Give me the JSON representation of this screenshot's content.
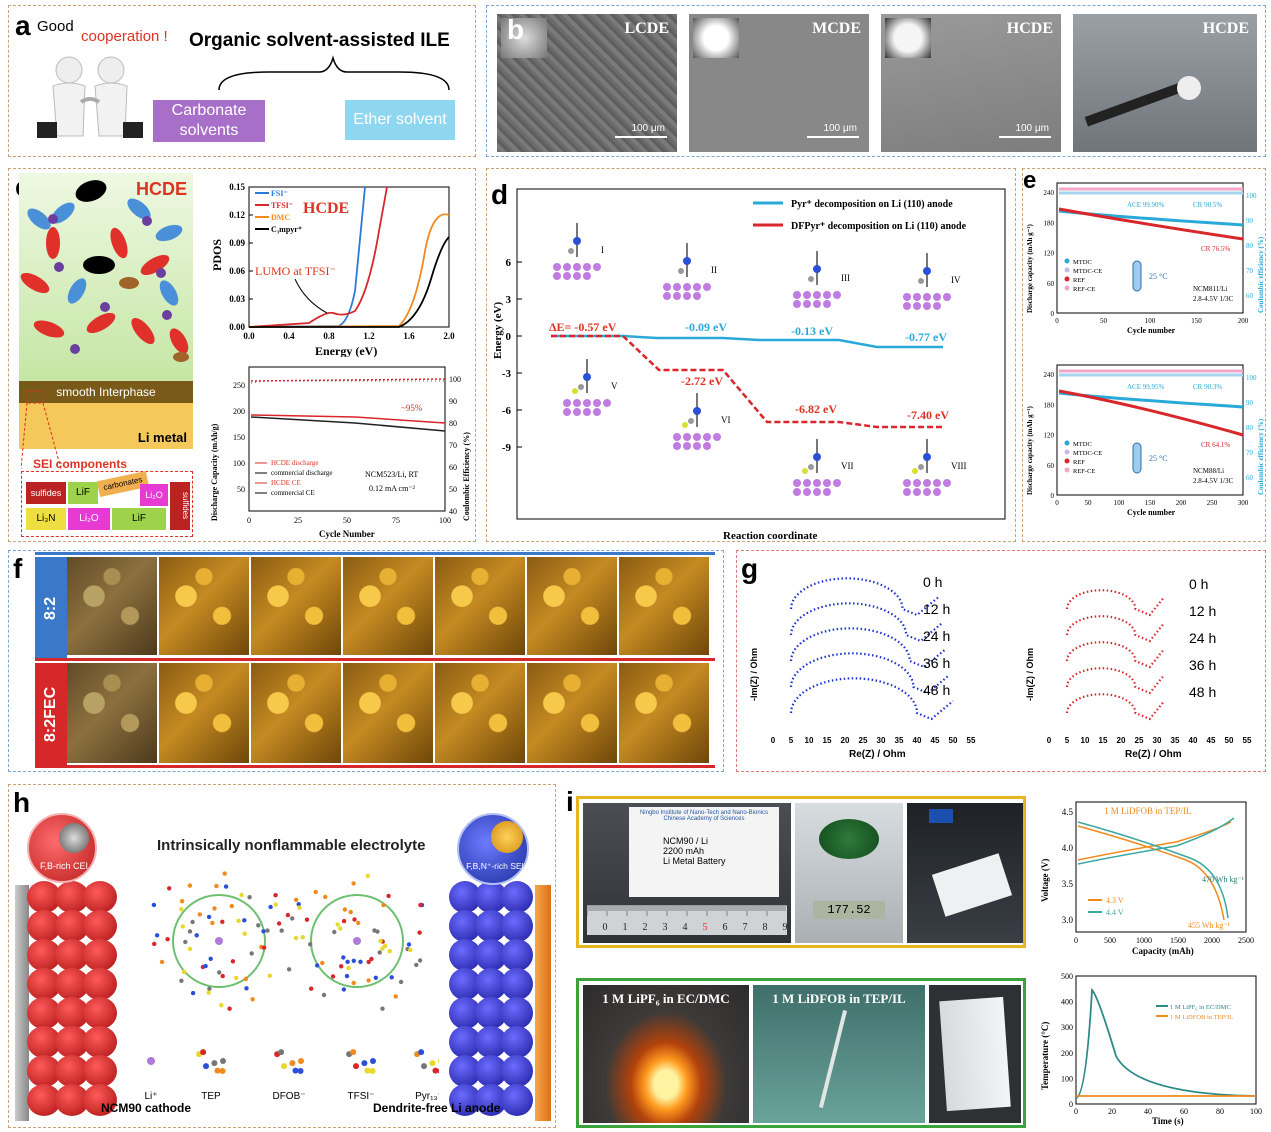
{
  "a": {
    "label": "a",
    "good": "Good",
    "cooperation": "cooperation !",
    "title": "Organic solvent-assisted ILE",
    "left": "Carbonate\nsolvents",
    "right": "Ether solvent"
  },
  "b": {
    "label": "b",
    "tiles": [
      "LCDE",
      "MCDE",
      "HCDE",
      "HCDE"
    ],
    "scale": "100 μm"
  },
  "c": {
    "label": "c",
    "tag": "HCDE",
    "interphase": "smooth Interphase",
    "limetal": "Li metal",
    "sei": "SEI components",
    "blocks": [
      "sulfides",
      "LiF",
      "carbonates",
      "Li₂O",
      "sulfides",
      "Li₃N",
      "Li₂O",
      "LiF"
    ],
    "pdos": {
      "title": "HCDE",
      "legend": [
        "FSI⁻",
        "TFSI⁻",
        "DMC",
        "C₃mpyr⁺"
      ],
      "ylabel": "PDOS",
      "xlabel": "Energy (eV)",
      "yticks": [
        "0.00",
        "0.03",
        "0.06",
        "0.09",
        "0.12",
        "0.15"
      ],
      "xticks": [
        "0.0",
        "0.4",
        "0.8",
        "1.2",
        "1.6",
        "2.0"
      ],
      "annotation": "LUMO at TFSI⁻"
    },
    "cycling": {
      "ylabel": "Discharge Capacity (mAh/g)",
      "y2label": "Coulombic Efficiency (%)",
      "xlabel": "Cycle Number",
      "xticks": [
        "0",
        "25",
        "50",
        "75",
        "100"
      ],
      "yticks": [
        "50",
        "100",
        "150",
        "200",
        "250"
      ],
      "y2ticks": [
        "40",
        "50",
        "60",
        "70",
        "80",
        "90",
        "100"
      ],
      "legend": [
        "HCDE discharge",
        "commercial discharge",
        "HCDE CE",
        "commercial CE"
      ],
      "info": [
        "NCM523/Li, RT",
        "0.12 mA cm⁻²"
      ],
      "retention": "~95%"
    }
  },
  "d": {
    "label": "d",
    "legend": [
      "Pyr⁺ decomposition on Li (110) anode",
      "DFPyr⁺ decomposition on Li (110) anode"
    ],
    "ylabel": "Energy (eV)",
    "xlabel": "Reaction coordinate",
    "yticks": [
      "6",
      "3",
      "0",
      "-3",
      "-6",
      "-9"
    ],
    "delta": "ΔE= -0.57 eV",
    "blue_values": [
      "-0.09 eV",
      "-0.13 eV",
      "-0.77 eV"
    ],
    "red_values": [
      "-2.72 eV",
      "-6.82 eV",
      "-7.40 eV"
    ],
    "states": [
      "I",
      "II",
      "III",
      "IV",
      "V",
      "VI",
      "VII",
      "VIII"
    ]
  },
  "e": {
    "label": "e",
    "top": {
      "ace": "ACE 99.90%",
      "cr_blue": "CR 90.5%",
      "cr_red": "CR 76.5%",
      "legend": [
        "MTDC",
        "MTDC-CE",
        "REF",
        "REF-CE"
      ],
      "temp": "25 °C",
      "cell": [
        "NCM811/Li",
        "2.8-4.5V 1/3C"
      ],
      "xticks": [
        "0",
        "50",
        "100",
        "150",
        "200"
      ]
    },
    "bottom": {
      "ace": "ACE 99.95%",
      "cr_blue": "CR 90.3%",
      "cr_red": "CR 64.1%",
      "legend": [
        "MTDC",
        "MTDC-CE",
        "REF",
        "REF-CE"
      ],
      "temp": "25 °C",
      "cell": [
        "NCM88/Li",
        "2.8-4.5V 1/3C"
      ],
      "xticks": [
        "0",
        "50",
        "100",
        "150",
        "200",
        "250",
        "300"
      ]
    },
    "ylabel": "Discharge capacity (mAh g⁻¹)",
    "y2label": "Coulombic efficiency (%)",
    "xlabel": "Cycle number",
    "yticks": [
      "0",
      "60",
      "120",
      "180",
      "240"
    ],
    "y2ticks": [
      "60",
      "70",
      "80",
      "90",
      "100"
    ]
  },
  "f": {
    "label": "f",
    "rows": [
      "8:2",
      "8:2FEC"
    ]
  },
  "g": {
    "label": "g",
    "ylabel": "-Im(Z) / Ohm",
    "xlabel": "Re(Z) / Ohm",
    "xticks": [
      "0",
      "5",
      "10",
      "15",
      "20",
      "25",
      "30",
      "35",
      "40",
      "45",
      "50",
      "55"
    ],
    "times": [
      "0 h",
      "12 h",
      "24 h",
      "36 h",
      "48 h"
    ]
  },
  "h": {
    "label": "h",
    "title": "Intrinsically nonflammable electrolyte",
    "cei": "F,B-rich CEI",
    "sei": "F,B,N⁺-rich SEI",
    "cathode": "NCM90 cathode",
    "anode": "Dendrite-free Li anode",
    "species": [
      "Li⁺",
      "TEP",
      "DFOB⁻",
      "TFSI⁻",
      "Pyr₁₃⁺"
    ]
  },
  "i": {
    "label": "i",
    "cell_label": [
      "NCM90 / Li",
      "2200 mAh",
      "Li Metal Battery"
    ],
    "cell_header": [
      "Ningbo Institute of Nano-Tech and Nano-Bionics",
      "Chinese Academy of Sciences"
    ],
    "scale_reading": "177.52",
    "flame_left": "1 M LiPF₆ in EC/DMC",
    "flame_right": "1 M LiDFOB in TEP/IL",
    "voltage": {
      "title": "1 M LiDFOB in TEP/IL",
      "ylabel": "Voltage (V)",
      "xlabel": "Capacity (mAh)",
      "yticks": [
        "3.0",
        "3.5",
        "4.0",
        "4.5"
      ],
      "xticks": [
        "0",
        "500",
        "1000",
        "1500",
        "2000",
        "2500"
      ],
      "legend": [
        "4.3 V",
        "4.4 V"
      ],
      "wh1": "470 Wh kg⁻¹",
      "wh2": "455 Wh kg⁻¹"
    },
    "temp": {
      "ylabel": "Temperature (°C)",
      "xlabel": "Time (s)",
      "yticks": [
        "0",
        "100",
        "200",
        "300",
        "400",
        "500"
      ],
      "xticks": [
        "0",
        "20",
        "40",
        "60",
        "80",
        "100"
      ],
      "legend": [
        "1 M LiPF₆ in EC/DMC",
        "1 M LiDFOB in TEP/IL"
      ]
    }
  },
  "colors": {
    "blue": "#29a9d8",
    "red": "#d8262a",
    "orange": "#f08a1c",
    "navy": "#1b2fd0"
  }
}
